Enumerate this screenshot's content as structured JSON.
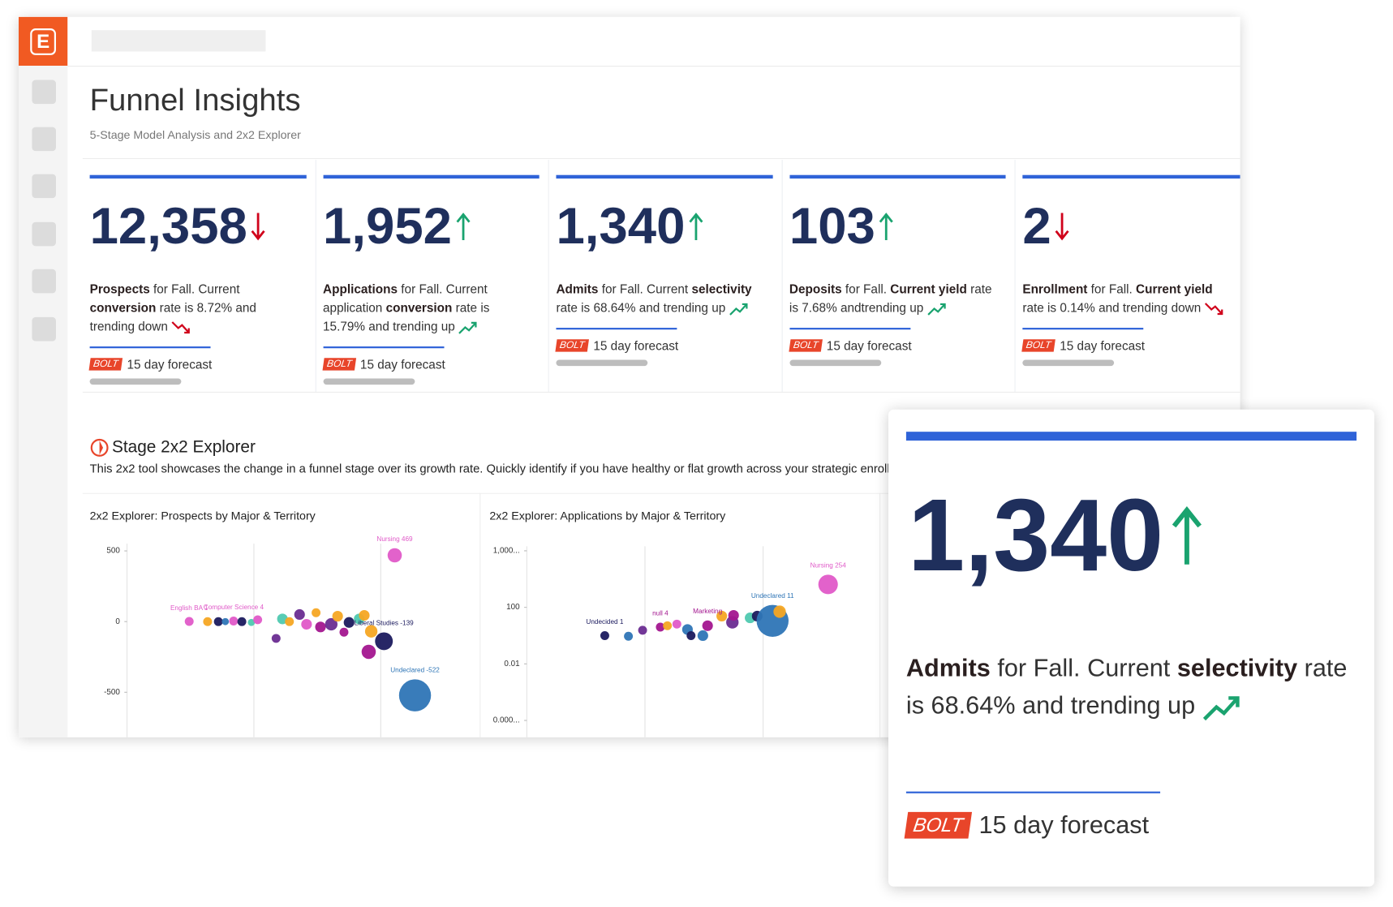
{
  "logo": "E",
  "header": {
    "title": "Funnel Insights",
    "subtitle": "5-Stage Model Analysis and 2x2 Explorer"
  },
  "kpis": [
    {
      "value": "12,358",
      "trend": "down",
      "description": [
        {
          "text": "Prospects",
          "bold": true
        },
        {
          "text": " for Fall.  Current "
        },
        {
          "text": "conversion",
          "bold": true
        },
        {
          "text": " rate is 8.72% and trending down"
        }
      ],
      "badge": "BOLT",
      "forecast": "15 day forecast"
    },
    {
      "value": "1,952",
      "trend": "up",
      "description": [
        {
          "text": "Applications",
          "bold": true
        },
        {
          "text": " for Fall.  Current application "
        },
        {
          "text": "conversion",
          "bold": true
        },
        {
          "text": " rate is 15.79% and trending up"
        }
      ],
      "badge": "BOLT",
      "forecast": "15 day forecast"
    },
    {
      "value": "1,340",
      "trend": "up",
      "description": [
        {
          "text": "Admits",
          "bold": true
        },
        {
          "text": " for Fall.  Current "
        },
        {
          "text": "selectivity",
          "bold": true
        },
        {
          "text": " rate is 68.64% and trending up"
        }
      ],
      "badge": "BOLT",
      "forecast": "15 day forecast"
    },
    {
      "value": "103",
      "trend": "up",
      "description": [
        {
          "text": "Deposits",
          "bold": true
        },
        {
          "text": " for Fall.  "
        },
        {
          "text": "Current yield",
          "bold": true
        },
        {
          "text": " rate is 7.68% andtrending up"
        }
      ],
      "badge": "BOLT",
      "forecast": "15 day forecast"
    },
    {
      "value": "2",
      "trend": "down",
      "description": [
        {
          "text": "Enrollment",
          "bold": true
        },
        {
          "text": "  for Fall.  "
        },
        {
          "text": "Current yield",
          "bold": true
        },
        {
          "text": " rate is 0.14% and trending down"
        }
      ],
      "badge": "BOLT",
      "forecast": "15 day forecast"
    }
  ],
  "explorer": {
    "title": "Stage 2x2 Explorer",
    "description": "This 2x2 tool showcases the change in a funnel stage over its growth rate.  Quickly identify if you have healthy or flat growth across your strategic enrollm"
  },
  "chart_data": [
    {
      "type": "scatter",
      "title": "2x2 Explorer: Prospects by Major & Territory",
      "x": [
        0.98,
        1.27,
        1.44,
        1.55,
        1.68,
        1.81,
        1.96,
        2.06,
        2.35,
        2.45,
        2.56,
        2.72,
        2.83,
        2.98,
        3.05,
        3.22,
        3.32,
        3.42,
        3.5,
        3.66,
        3.74,
        3.85,
        3.81,
        4.05,
        4.54,
        4.22
      ],
      "y": [
        1,
        0,
        0,
        0,
        4,
        0,
        -6,
        13,
        -119,
        19,
        0,
        50,
        -19,
        63,
        -38,
        -19,
        38,
        -75,
        -6,
        19,
        44,
        -69,
        -214,
        -139,
        -522,
        469
      ],
      "sizes": [
        5,
        5,
        5,
        4,
        5,
        5,
        4,
        5,
        5,
        6,
        5,
        6,
        6,
        5,
        6,
        7,
        6,
        5,
        6,
        6,
        6,
        7,
        8,
        10,
        18,
        8
      ],
      "colors": [
        "#e05ac8",
        "#f5a623",
        "#1b1a5e",
        "#2e75b6",
        "#e05ac8",
        "#1b1a5e",
        "#4fc9b0",
        "#e05ac8",
        "#6a2c91",
        "#4fc9b0",
        "#f5a623",
        "#6a2c91",
        "#e05ac8",
        "#f5a623",
        "#a3168f",
        "#6a2c91",
        "#f5a623",
        "#a3168f",
        "#1b1a5e",
        "#4fc9b0",
        "#f5a623",
        "#f5a623",
        "#a3168f",
        "#1b1a5e",
        "#2e75b6",
        "#e05ac8"
      ],
      "labels": [
        "English BA 1",
        null,
        null,
        null,
        "Computer Science 4",
        null,
        null,
        null,
        null,
        null,
        null,
        null,
        null,
        null,
        null,
        null,
        null,
        null,
        null,
        null,
        null,
        null,
        null,
        "Liberal Studies -139",
        "Undeclared -522",
        "Nursing 469"
      ],
      "xlim": [
        0,
        5
      ],
      "xticks": [
        0,
        2,
        4
      ],
      "ylim": [
        -800,
        520
      ],
      "yticks": [
        500,
        0,
        -500
      ],
      "grid": "x"
    },
    {
      "type": "scatter",
      "title": "2x2 Explorer: Applications by Major & Territory",
      "x": [
        0.66,
        0.86,
        0.98,
        1.13,
        1.19,
        1.27,
        1.36,
        1.39,
        1.49,
        1.53,
        1.65,
        1.74,
        1.75,
        1.89,
        1.95,
        2.08,
        2.14,
        2.55
      ],
      "y": [
        1,
        0.9,
        2.4,
        4,
        5,
        6.5,
        2.7,
        1,
        1,
        5,
        24,
        8.7,
        27,
        18,
        24,
        11,
        49,
        254
      ],
      "sizes": [
        5,
        5,
        5,
        5,
        5,
        5,
        6,
        5,
        6,
        6,
        6,
        7,
        6,
        6,
        6,
        18,
        7,
        11
      ],
      "colors": [
        "#1b1a5e",
        "#2e75b6",
        "#6a2c91",
        "#a3168f",
        "#f5a623",
        "#e05ac8",
        "#2e75b6",
        "#1b1a5e",
        "#2e75b6",
        "#a3168f",
        "#f5a623",
        "#6a2c91",
        "#a3168f",
        "#4fc9b0",
        "#1b1a5e",
        "#2e75b6",
        "#f5a623",
        "#e05ac8"
      ],
      "labels": [
        "Undecided 1",
        null,
        null,
        "null 4",
        null,
        null,
        null,
        null,
        null,
        "Marketing",
        null,
        null,
        null,
        null,
        null,
        "Undeclared 11",
        null,
        "Nursing 254"
      ],
      "xlim": [
        0,
        3
      ],
      "xticks": [
        0,
        1,
        2
      ],
      "ylim": [
        1000,
        0.0001
      ],
      "yscale": "log",
      "yticks": [
        {
          "value": 1000,
          "label": "1,000..."
        },
        100,
        0.01,
        {
          "value": 0.0001,
          "label": "0.000..."
        }
      ],
      "grid": "x"
    }
  ]
}
